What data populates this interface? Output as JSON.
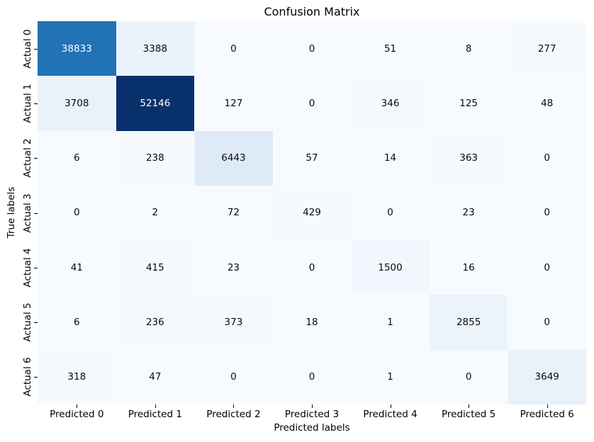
{
  "chart_data": {
    "type": "heatmap",
    "title": "Confusion Matrix",
    "xlabel": "Predicted labels",
    "ylabel": "True labels",
    "row_labels": [
      "Actual 0",
      "Actual 1",
      "Actual 2",
      "Actual 3",
      "Actual 4",
      "Actual 5",
      "Actual 6"
    ],
    "col_labels": [
      "Predicted 0",
      "Predicted 1",
      "Predicted 2",
      "Predicted 3",
      "Predicted 4",
      "Predicted 5",
      "Predicted 6"
    ],
    "matrix": [
      [
        38833,
        3388,
        0,
        0,
        51,
        8,
        277
      ],
      [
        3708,
        52146,
        127,
        0,
        346,
        125,
        48
      ],
      [
        6,
        238,
        6443,
        57,
        14,
        363,
        0
      ],
      [
        0,
        2,
        72,
        429,
        0,
        23,
        0
      ],
      [
        41,
        415,
        23,
        0,
        1500,
        16,
        0
      ],
      [
        6,
        236,
        373,
        18,
        1,
        2855,
        0
      ],
      [
        318,
        47,
        0,
        0,
        1,
        0,
        3649
      ]
    ],
    "vmin": 0,
    "vmax": 52146,
    "grid": false,
    "legend": "none",
    "colormap": {
      "name": "Blues",
      "anchors": [
        {
          "pos": 0.0,
          "color": "#f7fbff"
        },
        {
          "pos": 0.125,
          "color": "#deebf7"
        },
        {
          "pos": 0.25,
          "color": "#c6dbef"
        },
        {
          "pos": 0.375,
          "color": "#9ecae1"
        },
        {
          "pos": 0.5,
          "color": "#6baed6"
        },
        {
          "pos": 0.625,
          "color": "#4292c6"
        },
        {
          "pos": 0.75,
          "color": "#2171b5"
        },
        {
          "pos": 0.875,
          "color": "#08519c"
        },
        {
          "pos": 1.0,
          "color": "#08306b"
        }
      ]
    },
    "annotation_text_dark": "#0a0a0a",
    "annotation_text_light": "#ffffff",
    "figure_background": "#ffffff"
  }
}
